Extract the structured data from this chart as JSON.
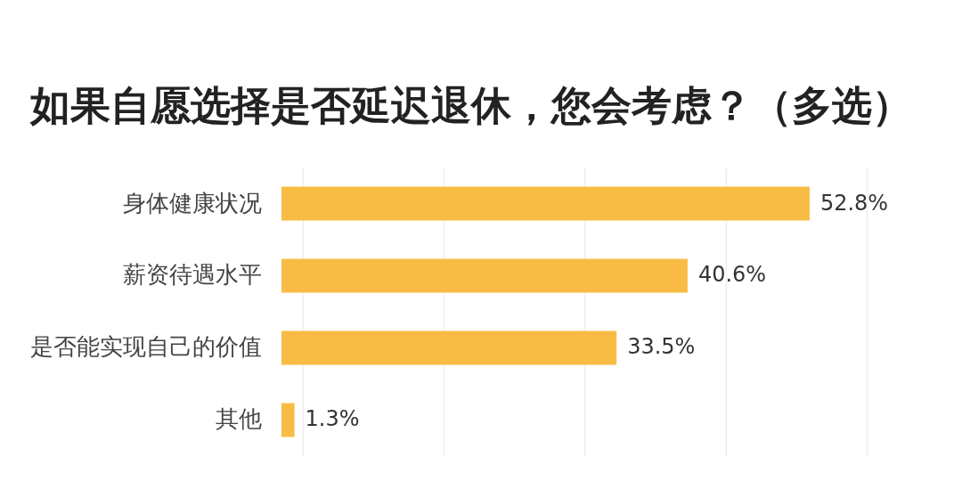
{
  "chart_data": {
    "type": "bar",
    "orientation": "horizontal",
    "title": "如果自愿选择是否延迟退休，您会考虑？（多选）",
    "categories": [
      "身体健康状况",
      "薪资待遇水平",
      "是否能实现自己的价值",
      "其他"
    ],
    "values": [
      52.8,
      40.6,
      33.5,
      1.3
    ],
    "value_labels": [
      "52.8%",
      "40.6%",
      "33.5%",
      "1.3%"
    ],
    "color": "#f8bc44",
    "xlim": [
      0,
      58.5
    ],
    "xticks": [
      {
        "value": 2.1,
        "label": null
      },
      {
        "value": 16.2,
        "label": null
      },
      {
        "value": 30.3,
        "label": null
      },
      {
        "value": 44.4,
        "label": null
      },
      {
        "value": 58.5,
        "label": null
      }
    ],
    "grid": "x",
    "tick_labels": "y"
  }
}
